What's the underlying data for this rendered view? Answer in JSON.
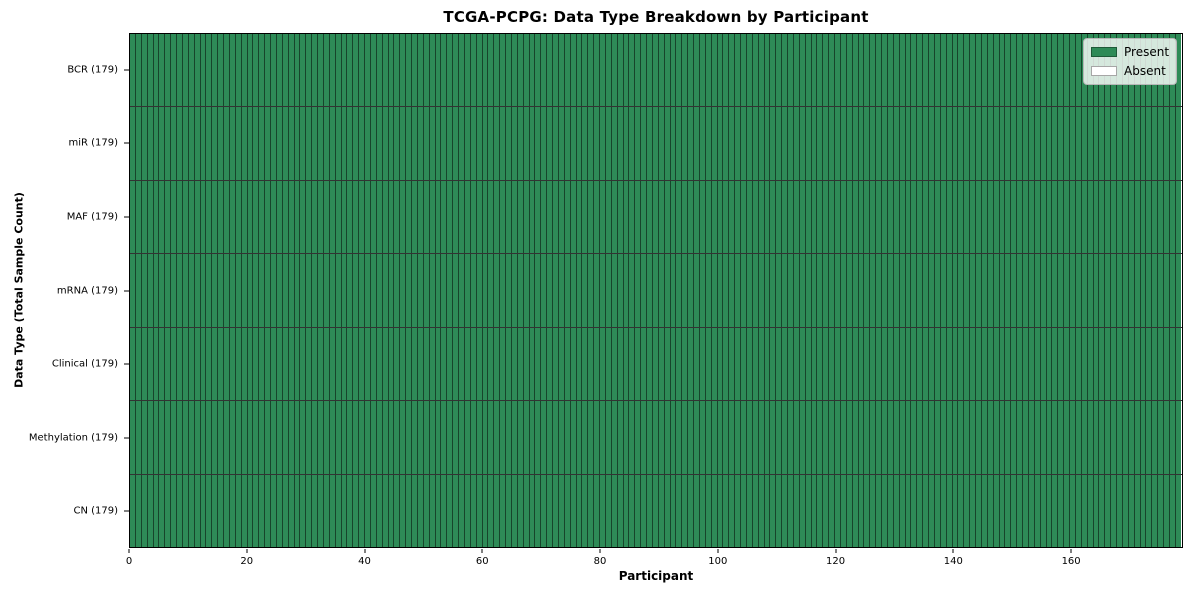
{
  "chart_data": {
    "type": "heatmap",
    "title": "TCGA-PCPG: Data Type Breakdown by Participant",
    "xlabel": "Participant",
    "ylabel": "Data Type (Total Sample Count)",
    "n_participants": 179,
    "xlim": [
      0,
      179
    ],
    "x_ticks": [
      0,
      20,
      40,
      60,
      80,
      100,
      120,
      140,
      160
    ],
    "rows": [
      {
        "label": "BCR (179)",
        "data_type": "BCR",
        "total_samples": 179,
        "present_count": 179,
        "absent_count": 0
      },
      {
        "label": "miR (179)",
        "data_type": "miR",
        "total_samples": 179,
        "present_count": 179,
        "absent_count": 0
      },
      {
        "label": "MAF (179)",
        "data_type": "MAF",
        "total_samples": 179,
        "present_count": 179,
        "absent_count": 0
      },
      {
        "label": "mRNA (179)",
        "data_type": "mRNA",
        "total_samples": 179,
        "present_count": 179,
        "absent_count": 0
      },
      {
        "label": "Clinical (179)",
        "data_type": "Clinical",
        "total_samples": 179,
        "present_count": 179,
        "absent_count": 0
      },
      {
        "label": "Methylation (179)",
        "data_type": "Methylation",
        "total_samples": 179,
        "present_count": 179,
        "absent_count": 0
      },
      {
        "label": "CN (179)",
        "data_type": "CN",
        "total_samples": 179,
        "present_count": 179,
        "absent_count": 0
      }
    ],
    "legend": {
      "position": "upper right",
      "entries": [
        {
          "label": "Present",
          "color": "#2e8b57"
        },
        {
          "label": "Absent",
          "color": "#ffffff"
        }
      ]
    },
    "colors": {
      "present": "#2e8b57",
      "absent": "#ffffff",
      "cell_edge": "rgba(0,0,0,0.5)",
      "row_separator": "rgba(0,0,0,0.8)",
      "axis": "#000000"
    },
    "grid": false
  }
}
